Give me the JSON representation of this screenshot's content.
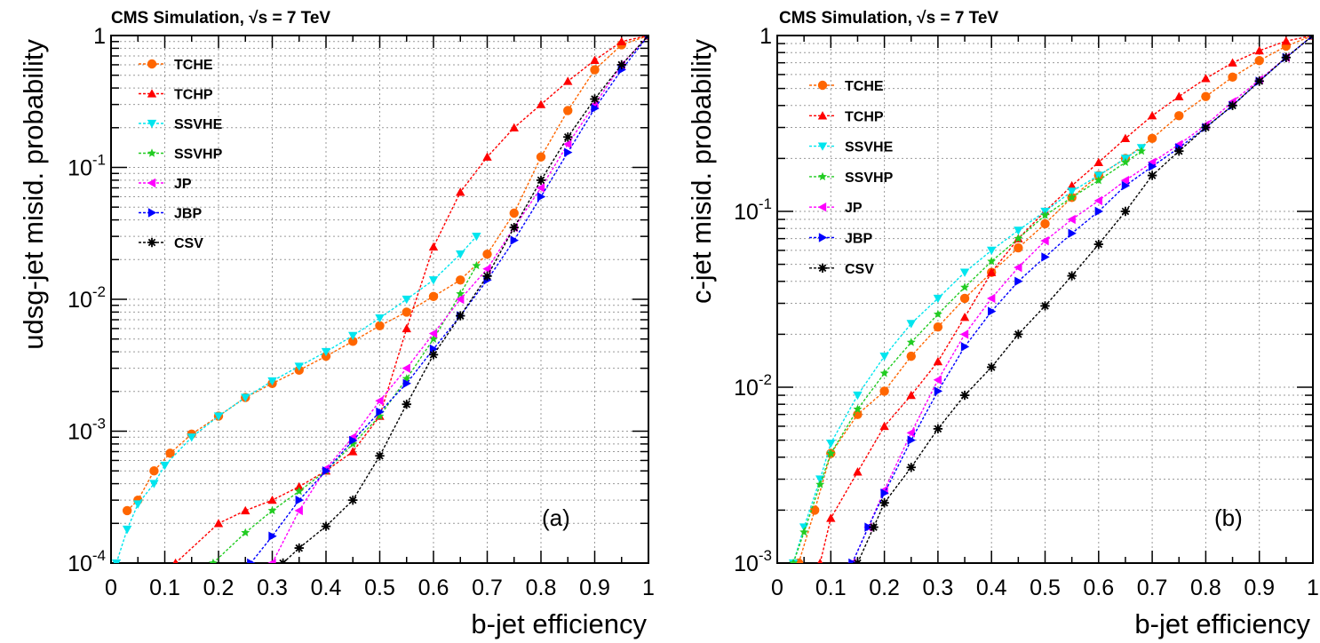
{
  "chart_data": [
    {
      "type": "line",
      "header": "CMS Simulation, √s = 7 TeV",
      "xlabel": "b-jet efficiency",
      "ylabel": "udsg-jet misid. probability",
      "panel_label": "(a)",
      "xlim": [
        0,
        1
      ],
      "ylim": [
        0.0001,
        1
      ],
      "ylog": true,
      "grid": true,
      "legend_position": "top-left",
      "xticks": [
        "0",
        "0.1",
        "0.2",
        "0.3",
        "0.4",
        "0.5",
        "0.6",
        "0.7",
        "0.8",
        "0.9",
        "1"
      ],
      "yticks": [
        {
          "base": "10",
          "exp": "-4",
          "value": 0.0001
        },
        {
          "base": "10",
          "exp": "-3",
          "value": 0.001
        },
        {
          "base": "10",
          "exp": "-2",
          "value": 0.01
        },
        {
          "base": "10",
          "exp": "-1",
          "value": 0.1
        },
        {
          "base": "1",
          "exp": "",
          "value": 1
        }
      ],
      "series": [
        {
          "name": "TCHE",
          "color": "#ff6600",
          "marker": "circle",
          "x": [
            0.03,
            0.05,
            0.08,
            0.11,
            0.15,
            0.2,
            0.25,
            0.3,
            0.35,
            0.4,
            0.45,
            0.5,
            0.55,
            0.6,
            0.65,
            0.7,
            0.75,
            0.8,
            0.85,
            0.9,
            0.95,
            1.0
          ],
          "y": [
            0.00025,
            0.0003,
            0.0005,
            0.00068,
            0.00095,
            0.0013,
            0.0018,
            0.0023,
            0.0029,
            0.0037,
            0.0048,
            0.0063,
            0.008,
            0.0105,
            0.014,
            0.022,
            0.045,
            0.12,
            0.27,
            0.55,
            0.85,
            1
          ]
        },
        {
          "name": "TCHP",
          "color": "#ff0000",
          "marker": "triangle-up",
          "x": [
            0.12,
            0.2,
            0.25,
            0.3,
            0.35,
            0.4,
            0.45,
            0.5,
            0.55,
            0.6,
            0.65,
            0.7,
            0.75,
            0.8,
            0.85,
            0.9,
            0.95,
            1.0
          ],
          "y": [
            0.0001,
            0.0002,
            0.00025,
            0.0003,
            0.00038,
            0.0005,
            0.0007,
            0.0013,
            0.006,
            0.025,
            0.065,
            0.12,
            0.2,
            0.3,
            0.45,
            0.65,
            0.9,
            1
          ]
        },
        {
          "name": "SSVHE",
          "color": "#00e5ee",
          "marker": "triangle-down",
          "x": [
            0.01,
            0.03,
            0.05,
            0.08,
            0.1,
            0.15,
            0.2,
            0.25,
            0.3,
            0.35,
            0.4,
            0.45,
            0.5,
            0.55,
            0.6,
            0.65,
            0.68
          ],
          "y": [
            0.0001,
            0.00018,
            0.00028,
            0.0004,
            0.00055,
            0.0009,
            0.0013,
            0.0018,
            0.0024,
            0.0031,
            0.004,
            0.0053,
            0.0072,
            0.01,
            0.014,
            0.022,
            0.03
          ]
        },
        {
          "name": "SSVHP",
          "color": "#22cc22",
          "marker": "star",
          "x": [
            0.19,
            0.25,
            0.3,
            0.35,
            0.4,
            0.45,
            0.5,
            0.55,
            0.6,
            0.65,
            0.68
          ],
          "y": [
            0.0001,
            0.00017,
            0.00025,
            0.00035,
            0.0005,
            0.0008,
            0.0013,
            0.0025,
            0.005,
            0.011,
            0.018
          ]
        },
        {
          "name": "JP",
          "color": "#ff00ff",
          "marker": "triangle-left",
          "x": [
            0.3,
            0.35,
            0.4,
            0.45,
            0.5,
            0.55,
            0.6,
            0.65,
            0.7,
            0.75,
            0.8,
            0.85,
            0.9,
            0.95,
            1.0
          ],
          "y": [
            0.0001,
            0.00025,
            0.00052,
            0.0009,
            0.0017,
            0.003,
            0.0055,
            0.01,
            0.017,
            0.035,
            0.07,
            0.15,
            0.3,
            0.6,
            1
          ]
        },
        {
          "name": "JBP",
          "color": "#0000ff",
          "marker": "triangle-right",
          "x": [
            0.26,
            0.3,
            0.35,
            0.4,
            0.45,
            0.5,
            0.55,
            0.6,
            0.65,
            0.7,
            0.75,
            0.8,
            0.85,
            0.9,
            0.95,
            1.0
          ],
          "y": [
            0.0001,
            0.00016,
            0.0003,
            0.0005,
            0.00085,
            0.0014,
            0.0023,
            0.0042,
            0.0075,
            0.014,
            0.028,
            0.06,
            0.13,
            0.28,
            0.55,
            1
          ]
        },
        {
          "name": "CSV",
          "color": "#000000",
          "marker": "asterisk",
          "x": [
            0.32,
            0.35,
            0.4,
            0.45,
            0.5,
            0.55,
            0.6,
            0.65,
            0.7,
            0.75,
            0.8,
            0.85,
            0.9,
            0.95,
            1.0
          ],
          "y": [
            0.0001,
            0.00013,
            0.00019,
            0.0003,
            0.00065,
            0.0016,
            0.0038,
            0.0075,
            0.015,
            0.035,
            0.08,
            0.17,
            0.33,
            0.6,
            1
          ]
        }
      ]
    },
    {
      "type": "line",
      "header": "CMS Simulation, √s = 7 TeV",
      "xlabel": "b-jet efficiency",
      "ylabel": "c-jet misid. probability",
      "panel_label": "(b)",
      "xlim": [
        0,
        1
      ],
      "ylim": [
        0.001,
        1
      ],
      "ylog": true,
      "grid": true,
      "legend_position": "top-left",
      "xticks": [
        "0",
        "0.1",
        "0.2",
        "0.3",
        "0.4",
        "0.5",
        "0.6",
        "0.7",
        "0.8",
        "0.9",
        "1"
      ],
      "yticks": [
        {
          "base": "10",
          "exp": "-3",
          "value": 0.001
        },
        {
          "base": "10",
          "exp": "-2",
          "value": 0.01
        },
        {
          "base": "10",
          "exp": "-1",
          "value": 0.1
        },
        {
          "base": "1",
          "exp": "",
          "value": 1
        }
      ],
      "series": [
        {
          "name": "TCHE",
          "color": "#ff6600",
          "marker": "circle",
          "x": [
            0.04,
            0.07,
            0.1,
            0.15,
            0.2,
            0.25,
            0.3,
            0.35,
            0.4,
            0.45,
            0.5,
            0.55,
            0.6,
            0.65,
            0.7,
            0.75,
            0.8,
            0.85,
            0.9,
            0.95,
            1.0
          ],
          "y": [
            0.001,
            0.002,
            0.0042,
            0.007,
            0.0095,
            0.015,
            0.022,
            0.032,
            0.045,
            0.062,
            0.085,
            0.12,
            0.16,
            0.2,
            0.26,
            0.35,
            0.45,
            0.58,
            0.72,
            0.87,
            1
          ]
        },
        {
          "name": "TCHP",
          "color": "#ff0000",
          "marker": "triangle-up",
          "x": [
            0.08,
            0.1,
            0.15,
            0.2,
            0.25,
            0.3,
            0.35,
            0.4,
            0.45,
            0.5,
            0.55,
            0.6,
            0.65,
            0.7,
            0.75,
            0.8,
            0.85,
            0.9,
            0.95,
            1.0
          ],
          "y": [
            0.001,
            0.0018,
            0.0033,
            0.006,
            0.009,
            0.014,
            0.025,
            0.045,
            0.07,
            0.1,
            0.14,
            0.19,
            0.26,
            0.35,
            0.45,
            0.57,
            0.7,
            0.82,
            0.93,
            1
          ]
        },
        {
          "name": "SSVHE",
          "color": "#00e5ee",
          "marker": "triangle-down",
          "x": [
            0.03,
            0.05,
            0.08,
            0.1,
            0.15,
            0.2,
            0.25,
            0.3,
            0.35,
            0.4,
            0.45,
            0.5,
            0.55,
            0.6,
            0.65,
            0.68
          ],
          "y": [
            0.001,
            0.0016,
            0.003,
            0.0048,
            0.009,
            0.015,
            0.023,
            0.032,
            0.045,
            0.06,
            0.078,
            0.1,
            0.13,
            0.16,
            0.2,
            0.23
          ]
        },
        {
          "name": "SSVHP",
          "color": "#22cc22",
          "marker": "star",
          "x": [
            0.03,
            0.05,
            0.08,
            0.1,
            0.15,
            0.2,
            0.25,
            0.3,
            0.35,
            0.4,
            0.45,
            0.5,
            0.55,
            0.6,
            0.65,
            0.68
          ],
          "y": [
            0.001,
            0.0015,
            0.0028,
            0.0042,
            0.0075,
            0.012,
            0.018,
            0.026,
            0.037,
            0.052,
            0.07,
            0.095,
            0.12,
            0.15,
            0.19,
            0.22
          ]
        },
        {
          "name": "JP",
          "color": "#ff00ff",
          "marker": "triangle-left",
          "x": [
            0.14,
            0.17,
            0.2,
            0.25,
            0.3,
            0.35,
            0.4,
            0.45,
            0.5,
            0.55,
            0.6,
            0.65,
            0.7,
            0.75,
            0.8,
            0.85,
            0.9,
            0.95,
            1.0
          ],
          "y": [
            0.001,
            0.0016,
            0.0026,
            0.0055,
            0.011,
            0.02,
            0.032,
            0.048,
            0.068,
            0.09,
            0.115,
            0.15,
            0.19,
            0.24,
            0.31,
            0.42,
            0.56,
            0.75,
            1
          ]
        },
        {
          "name": "JBP",
          "color": "#0000ff",
          "marker": "triangle-right",
          "x": [
            0.14,
            0.17,
            0.2,
            0.25,
            0.3,
            0.35,
            0.4,
            0.45,
            0.5,
            0.55,
            0.6,
            0.65,
            0.7,
            0.75,
            0.8,
            0.85,
            0.9,
            0.95,
            1.0
          ],
          "y": [
            0.001,
            0.0016,
            0.0025,
            0.005,
            0.0095,
            0.017,
            0.027,
            0.04,
            0.055,
            0.075,
            0.1,
            0.14,
            0.18,
            0.23,
            0.3,
            0.4,
            0.55,
            0.75,
            1
          ]
        },
        {
          "name": "CSV",
          "color": "#000000",
          "marker": "asterisk",
          "x": [
            0.15,
            0.18,
            0.2,
            0.25,
            0.3,
            0.35,
            0.4,
            0.45,
            0.5,
            0.55,
            0.6,
            0.65,
            0.7,
            0.75,
            0.8,
            0.85,
            0.9,
            0.95,
            1.0
          ],
          "y": [
            0.001,
            0.0016,
            0.0022,
            0.0035,
            0.0058,
            0.009,
            0.013,
            0.02,
            0.029,
            0.043,
            0.065,
            0.1,
            0.16,
            0.22,
            0.3,
            0.4,
            0.55,
            0.75,
            1
          ]
        }
      ]
    }
  ]
}
